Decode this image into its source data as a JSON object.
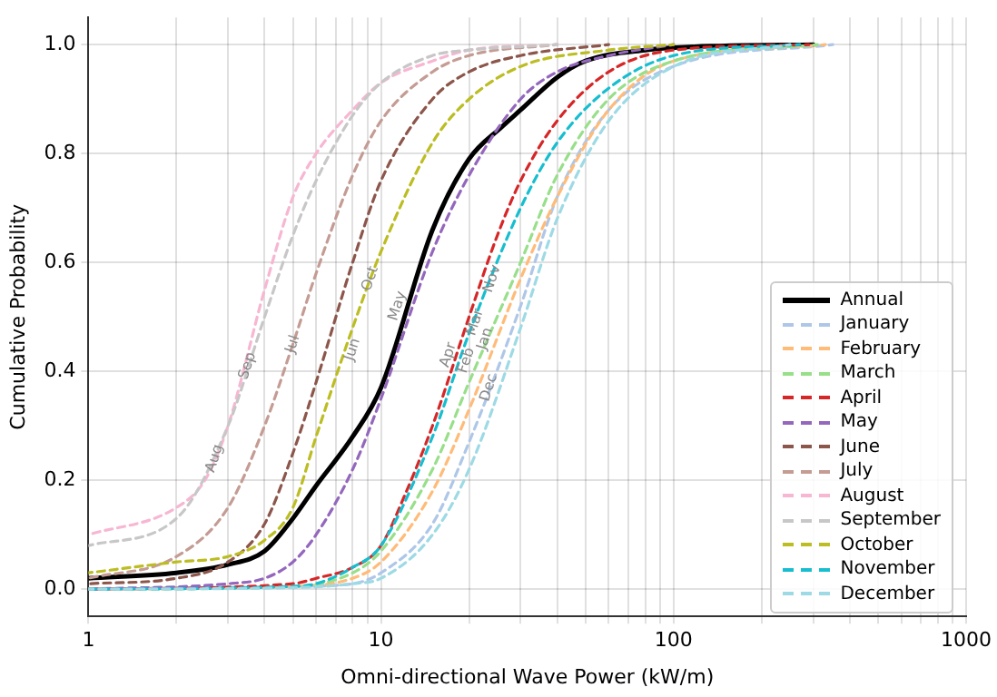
{
  "chart_data": {
    "type": "line",
    "xlabel": "Omni-directional Wave Power (kW/m)",
    "ylabel": "Cumulative Probability",
    "log": "x",
    "grid": true,
    "legend": "bottom right",
    "marker": "none",
    "xlim": [
      1,
      1000
    ],
    "ylim": [
      -0.05,
      1.05
    ],
    "xticks": [
      1,
      {
        "value": 2,
        "label": null
      },
      {
        "value": 3,
        "label": null
      },
      {
        "value": 4,
        "label": null
      },
      {
        "value": 5,
        "label": null
      },
      {
        "value": 6,
        "label": null
      },
      {
        "value": 7,
        "label": null
      },
      {
        "value": 8,
        "label": null
      },
      {
        "value": 9,
        "label": null
      },
      10,
      {
        "value": 20,
        "label": null
      },
      {
        "value": 30,
        "label": null
      },
      {
        "value": 40,
        "label": null
      },
      {
        "value": 50,
        "label": null
      },
      {
        "value": 60,
        "label": null
      },
      {
        "value": 70,
        "label": null
      },
      {
        "value": 80,
        "label": null
      },
      {
        "value": 90,
        "label": null
      },
      100,
      {
        "value": 200,
        "label": null
      },
      {
        "value": 300,
        "label": null
      },
      {
        "value": 400,
        "label": null
      },
      {
        "value": 500,
        "label": null
      },
      {
        "value": 600,
        "label": null
      },
      {
        "value": 700,
        "label": null
      },
      {
        "value": 800,
        "label": null
      },
      {
        "value": 900,
        "label": null
      },
      1000
    ],
    "yticks": [
      {
        "value": 0,
        "label": "0.0"
      },
      {
        "value": 0.2,
        "label": "0.2"
      },
      {
        "value": 0.4,
        "label": "0.4"
      },
      {
        "value": 0.6,
        "label": "0.6"
      },
      {
        "value": 0.8,
        "label": "0.8"
      },
      {
        "value": 1,
        "label": "1.0"
      }
    ],
    "series": [
      {
        "name": "Annual",
        "color": "#000000",
        "line_style": "solid",
        "x": [
          1,
          2,
          3,
          4,
          5,
          6,
          8,
          10,
          15,
          20,
          26,
          30,
          40,
          50,
          80,
          150,
          300
        ],
        "values": [
          0.02,
          0.03,
          0.045,
          0.07,
          0.13,
          0.19,
          0.28,
          0.37,
          0.66,
          0.79,
          0.85,
          0.88,
          0.94,
          0.97,
          0.99,
          0.998,
          1.0
        ]
      },
      {
        "name": "January",
        "color": "#aec7e8",
        "line_style": "dashed",
        "x": [
          1,
          5,
          8,
          10,
          15,
          20,
          30,
          40,
          60,
          100,
          350
        ],
        "values": [
          0,
          0.005,
          0.01,
          0.03,
          0.12,
          0.27,
          0.52,
          0.72,
          0.88,
          0.96,
          1.0
        ]
      },
      {
        "name": "February",
        "color": "#ffbb78",
        "line_style": "dashed",
        "x": [
          1,
          5,
          8,
          10,
          15,
          20,
          30,
          40,
          60,
          100,
          330
        ],
        "values": [
          0,
          0.005,
          0.02,
          0.05,
          0.18,
          0.33,
          0.57,
          0.72,
          0.88,
          0.97,
          1.0
        ]
      },
      {
        "name": "March",
        "color": "#98df8a",
        "line_style": "dashed",
        "x": [
          1,
          5,
          8,
          10,
          15,
          20,
          30,
          40,
          60,
          100,
          310
        ],
        "values": [
          0,
          0.005,
          0.03,
          0.07,
          0.22,
          0.38,
          0.6,
          0.76,
          0.9,
          0.97,
          1.0
        ]
      },
      {
        "name": "April",
        "color": "#d62728",
        "line_style": "dashed",
        "x": [
          1,
          5,
          6,
          8,
          10,
          12,
          15,
          20,
          25,
          30,
          40,
          60,
          100,
          290
        ],
        "values": [
          0,
          0.01,
          0.02,
          0.04,
          0.08,
          0.17,
          0.3,
          0.5,
          0.65,
          0.75,
          0.86,
          0.95,
          0.99,
          1.0
        ]
      },
      {
        "name": "May",
        "color": "#9467bd",
        "line_style": "dashed",
        "x": [
          1,
          3,
          4,
          5,
          6,
          8,
          10,
          15,
          20,
          30,
          40,
          60,
          100
        ],
        "values": [
          0,
          0.01,
          0.02,
          0.05,
          0.1,
          0.22,
          0.35,
          0.62,
          0.76,
          0.9,
          0.95,
          0.98,
          1.0
        ]
      },
      {
        "name": "June",
        "color": "#8c564b",
        "line_style": "dashed",
        "x": [
          1,
          2,
          3,
          4,
          5,
          6,
          8,
          10,
          15,
          20,
          30,
          60
        ],
        "values": [
          0.01,
          0.02,
          0.05,
          0.12,
          0.25,
          0.38,
          0.6,
          0.75,
          0.9,
          0.95,
          0.98,
          1.0
        ]
      },
      {
        "name": "July",
        "color": "#c49c94",
        "line_style": "dashed",
        "x": [
          1,
          2,
          3,
          4,
          5,
          6,
          8,
          10,
          15,
          20,
          40
        ],
        "values": [
          0.02,
          0.06,
          0.15,
          0.3,
          0.45,
          0.58,
          0.76,
          0.86,
          0.95,
          0.98,
          1.0
        ]
      },
      {
        "name": "August",
        "color": "#f7b6d2",
        "line_style": "dashed",
        "x": [
          1,
          2,
          2.5,
          3,
          4,
          5,
          6,
          8,
          10,
          15,
          20,
          40
        ],
        "values": [
          0.1,
          0.15,
          0.2,
          0.3,
          0.55,
          0.72,
          0.8,
          0.88,
          0.93,
          0.97,
          0.99,
          1.0
        ]
      },
      {
        "name": "September",
        "color": "#c7c7c7",
        "line_style": "dashed",
        "x": [
          1,
          2,
          3,
          4,
          5,
          6,
          8,
          10,
          15,
          20,
          40
        ],
        "values": [
          0.08,
          0.13,
          0.3,
          0.5,
          0.65,
          0.75,
          0.87,
          0.93,
          0.98,
          0.99,
          1.0
        ]
      },
      {
        "name": "October",
        "color": "#bcbd22",
        "line_style": "dashed",
        "x": [
          1,
          2,
          3,
          4,
          5,
          6,
          8,
          10,
          15,
          20,
          30,
          60,
          100
        ],
        "values": [
          0.03,
          0.05,
          0.06,
          0.09,
          0.15,
          0.28,
          0.48,
          0.62,
          0.82,
          0.9,
          0.96,
          0.99,
          1.0
        ]
      },
      {
        "name": "November",
        "color": "#17becf",
        "line_style": "dashed",
        "x": [
          1,
          5,
          6,
          8,
          10,
          15,
          20,
          30,
          40,
          60,
          100,
          270
        ],
        "values": [
          0,
          0.005,
          0.01,
          0.04,
          0.08,
          0.28,
          0.47,
          0.7,
          0.82,
          0.92,
          0.98,
          1.0
        ]
      },
      {
        "name": "December",
        "color": "#9edae5",
        "line_style": "dashed",
        "x": [
          1,
          5,
          8,
          10,
          15,
          20,
          30,
          40,
          60,
          100,
          250
        ],
        "values": [
          0,
          0.003,
          0.01,
          0.02,
          0.1,
          0.22,
          0.48,
          0.68,
          0.86,
          0.96,
          1.0
        ]
      }
    ],
    "annotations": [
      {
        "text": "Sep",
        "x": 3.5,
        "y": 0.41
      },
      {
        "text": "Aug",
        "x": 2.7,
        "y": 0.24
      },
      {
        "text": "Jul",
        "x": 5,
        "y": 0.45
      },
      {
        "text": "Jun",
        "x": 8,
        "y": 0.44
      },
      {
        "text": "Oct",
        "x": 9.2,
        "y": 0.57
      },
      {
        "text": "May",
        "x": 11.4,
        "y": 0.52
      },
      {
        "text": "Nov",
        "x": 24,
        "y": 0.57
      },
      {
        "text": "Apr",
        "x": 17,
        "y": 0.43
      },
      {
        "text": "Feb",
        "x": 19.6,
        "y": 0.42
      },
      {
        "text": "Mar",
        "x": 21,
        "y": 0.49
      },
      {
        "text": "Jan",
        "x": 22.7,
        "y": 0.46
      },
      {
        "text": "Dec",
        "x": 23.4,
        "y": 0.37
      }
    ]
  }
}
